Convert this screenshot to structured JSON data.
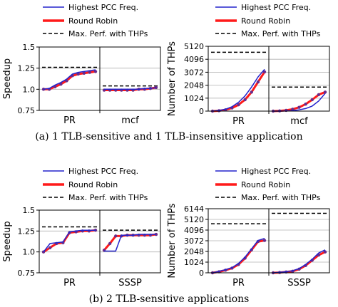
{
  "captions": {
    "a": "(a) 1 TLB-sensitive and 1 TLB-insensitive application",
    "b": "(b) 2 TLB-sensitive applications"
  },
  "legend": [
    {
      "label": "Highest PCC Freq.",
      "color": "#2222cc",
      "style": "solid"
    },
    {
      "label": "Round Robin",
      "color": "#ff1a1a",
      "style": "thick"
    },
    {
      "label": "Max. Perf. with THPs",
      "color": "#000000",
      "style": "dashed"
    }
  ],
  "chart_data": [
    {
      "id": "a_speedup",
      "type": "line",
      "ylabel": "Speedup",
      "ylim": [
        0.75,
        1.5
      ],
      "yticks": [
        "0.75",
        "1.0",
        "1.25",
        "1.5"
      ],
      "yticks_values": [
        0.75,
        1.0,
        1.25,
        1.5
      ],
      "grid": "horizontal",
      "legend_placement": "top",
      "groups": [
        {
          "label": "PR",
          "highest_pcc_freq": [
            1.0,
            1.01,
            1.05,
            1.08,
            1.12,
            1.18,
            1.2,
            1.21,
            1.22,
            1.23
          ],
          "round_robin": [
            1.0,
            1.0,
            1.03,
            1.06,
            1.1,
            1.16,
            1.18,
            1.19,
            1.2,
            1.21
          ],
          "max_perf_thps": 1.26
        },
        {
          "label": "mcf",
          "highest_pcc_freq": [
            1.0,
            1.0,
            1.0,
            1.0,
            1.0,
            1.0,
            1.0,
            1.01,
            1.01,
            1.02
          ],
          "round_robin": [
            0.99,
            0.99,
            0.99,
            0.99,
            0.99,
            0.99,
            1.0,
            1.0,
            1.01,
            1.02
          ],
          "max_perf_thps": 1.04
        }
      ]
    },
    {
      "id": "a_thps",
      "type": "line",
      "ylabel": "Number of THPs",
      "ylim": [
        0,
        5120
      ],
      "yticks": [
        "0",
        "1024",
        "2048",
        "3072",
        "4096",
        "5120"
      ],
      "yticks_values": [
        0,
        1024,
        2048,
        3072,
        4096,
        5120
      ],
      "grid": "horizontal",
      "legend_placement": "top",
      "groups": [
        {
          "label": "PR",
          "highest_pcc_freq": [
            0,
            50,
            150,
            350,
            700,
            1200,
            1900,
            2700,
            3300
          ],
          "round_robin": [
            0,
            30,
            100,
            250,
            500,
            900,
            1500,
            2300,
            3100
          ],
          "max_perf_thps": 4650
        },
        {
          "label": "mcf",
          "highest_pcc_freq": [
            0,
            0,
            10,
            40,
            100,
            200,
            400,
            800,
            1400
          ],
          "round_robin": [
            0,
            20,
            60,
            150,
            300,
            550,
            900,
            1300,
            1500
          ],
          "max_perf_thps": 1900
        }
      ]
    },
    {
      "id": "b_speedup",
      "type": "line",
      "ylabel": "Speedup",
      "ylim": [
        0.75,
        1.5
      ],
      "yticks": [
        "0.75",
        "1.0",
        "1.25",
        "1.5"
      ],
      "yticks_values": [
        0.75,
        1.0,
        1.25,
        1.5
      ],
      "grid": "horizontal",
      "legend_placement": "top",
      "groups": [
        {
          "label": "PR",
          "highest_pcc_freq": [
            1.0,
            1.1,
            1.11,
            1.12,
            1.24,
            1.25,
            1.26,
            1.26,
            1.26
          ],
          "round_robin": [
            1.0,
            1.05,
            1.1,
            1.11,
            1.23,
            1.24,
            1.25,
            1.25,
            1.26
          ],
          "max_perf_thps": 1.3
        },
        {
          "label": "SSSP",
          "highest_pcc_freq": [
            1.01,
            1.01,
            1.01,
            1.2,
            1.2,
            1.2,
            1.21,
            1.21,
            1.21,
            1.21
          ],
          "round_robin": [
            1.02,
            1.1,
            1.19,
            1.19,
            1.2,
            1.2,
            1.2,
            1.2,
            1.2,
            1.21
          ],
          "max_perf_thps": 1.26
        }
      ]
    },
    {
      "id": "b_thps",
      "type": "line",
      "ylabel": "Number of THPs",
      "ylim": [
        0,
        6144
      ],
      "yticks": [
        "0",
        "1024",
        "2048",
        "3072",
        "4096",
        "5120",
        "6144"
      ],
      "yticks_values": [
        0,
        1024,
        2048,
        3072,
        4096,
        5120,
        6144
      ],
      "grid": "horizontal",
      "legend_placement": "top",
      "groups": [
        {
          "label": "PR",
          "highest_pcc_freq": [
            0,
            150,
            300,
            500,
            900,
            1500,
            2300,
            3100,
            3300
          ],
          "round_robin": [
            0,
            100,
            250,
            450,
            800,
            1400,
            2200,
            3000,
            3100
          ],
          "max_perf_thps": 4700
        },
        {
          "label": "SSSP",
          "highest_pcc_freq": [
            0,
            50,
            100,
            200,
            400,
            800,
            1300,
            1900,
            2200
          ],
          "round_robin": [
            0,
            30,
            80,
            150,
            350,
            700,
            1200,
            1700,
            2000
          ],
          "max_perf_thps": 5700
        }
      ]
    }
  ]
}
